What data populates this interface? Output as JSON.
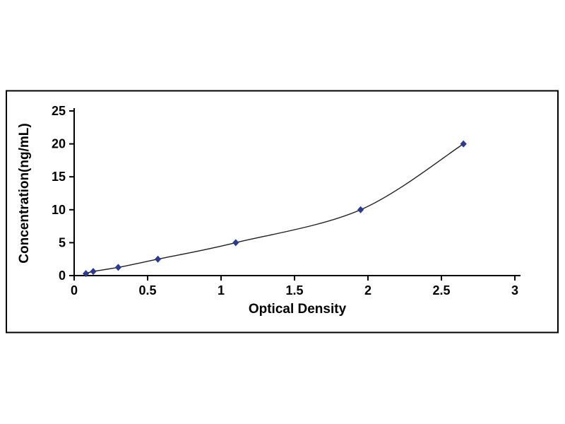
{
  "figure": {
    "background": "#ffffff",
    "frame_color": "#000000"
  },
  "chart_data": {
    "type": "line",
    "title": "",
    "xlabel": "Optical Density",
    "ylabel": "Concentration(ng/mL)",
    "x": [
      0.08,
      0.13,
      0.3,
      0.57,
      1.1,
      1.95,
      2.65
    ],
    "y": [
      0.31,
      0.63,
      1.25,
      2.5,
      5,
      10,
      20
    ],
    "xlim": [
      0,
      3
    ],
    "ylim": [
      0,
      25
    ],
    "x_ticks": [
      0,
      0.5,
      1,
      1.5,
      2,
      2.5,
      3
    ],
    "x_tick_labels": [
      "0",
      "0.5",
      "1",
      "1.5",
      "2",
      "2.5",
      "3"
    ],
    "y_ticks": [
      0,
      5,
      10,
      15,
      20,
      25
    ],
    "y_tick_labels": [
      "0",
      "5",
      "10",
      "15",
      "20",
      "25"
    ],
    "marker": "diamond",
    "marker_color": "#2b3990",
    "line_color": "#1f1f1f",
    "axis_color": "#000000",
    "grid": false,
    "legend_position": "none"
  }
}
